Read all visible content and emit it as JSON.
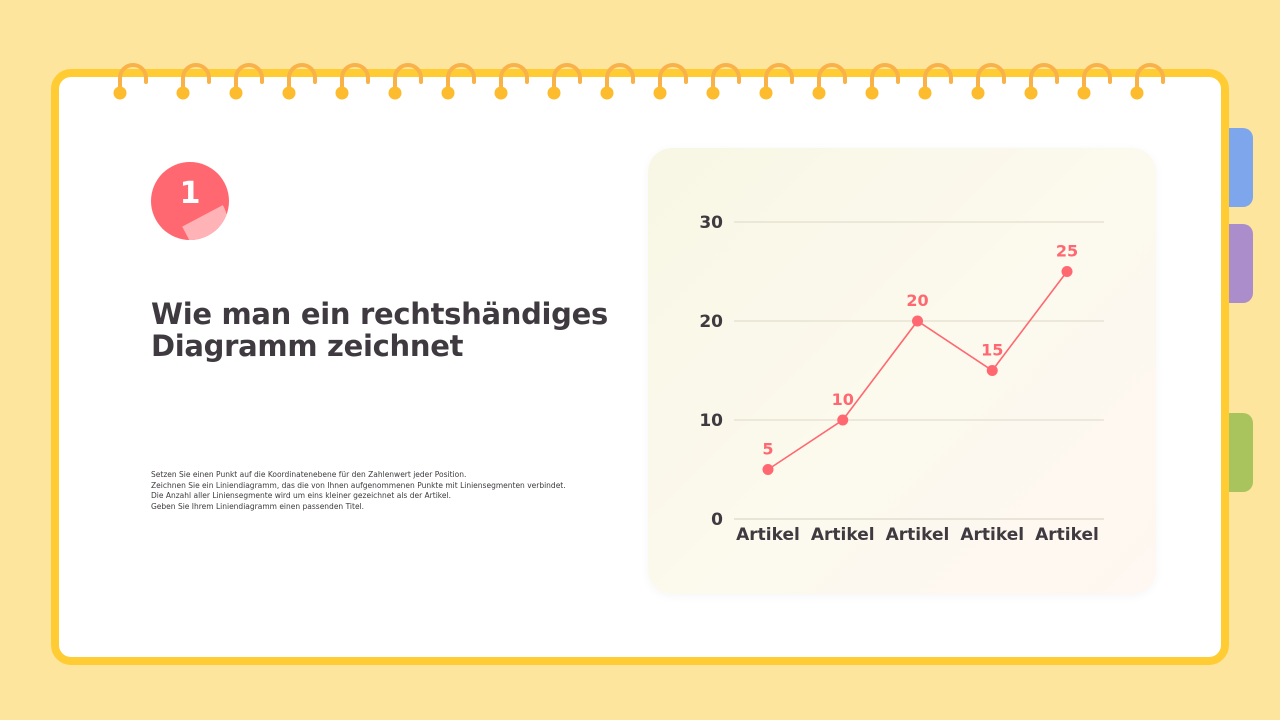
{
  "page": {
    "step_number": "1",
    "title": "Wie man ein rechtshändiges Diagramm zeichnet",
    "instructions": [
      "Setzen Sie einen Punkt auf die Koordinatenebene für den Zahlenwert jeder Position.",
      "Zeichnen Sie ein Liniendiagramm, das die von Ihnen aufgenommenen Punkte mit Liniensegmenten verbindet.",
      "Die Anzahl aller Liniensegmente wird um eins kleiner gezeichnet als der Artikel.",
      "Geben Sie Ihrem Liniendiagramm einen passenden Titel."
    ]
  },
  "colors": {
    "background": "#fee59e",
    "frame": "#ffcc34",
    "accent": "#ff6870",
    "tab_blue": "#7ea6ec",
    "tab_purple": "#ab8dcc",
    "tab_green": "#a9c45c",
    "text": "#3f3a40"
  },
  "chart_data": {
    "type": "line",
    "categories": [
      "Artikel",
      "Artikel",
      "Artikel",
      "Artikel",
      "Artikel"
    ],
    "values": [
      5,
      10,
      20,
      15,
      25
    ],
    "ylim": [
      0,
      30
    ],
    "yticks": [
      0,
      10,
      20,
      30
    ],
    "grid": true,
    "data_labels": true,
    "title": "",
    "xlabel": "",
    "ylabel": ""
  }
}
